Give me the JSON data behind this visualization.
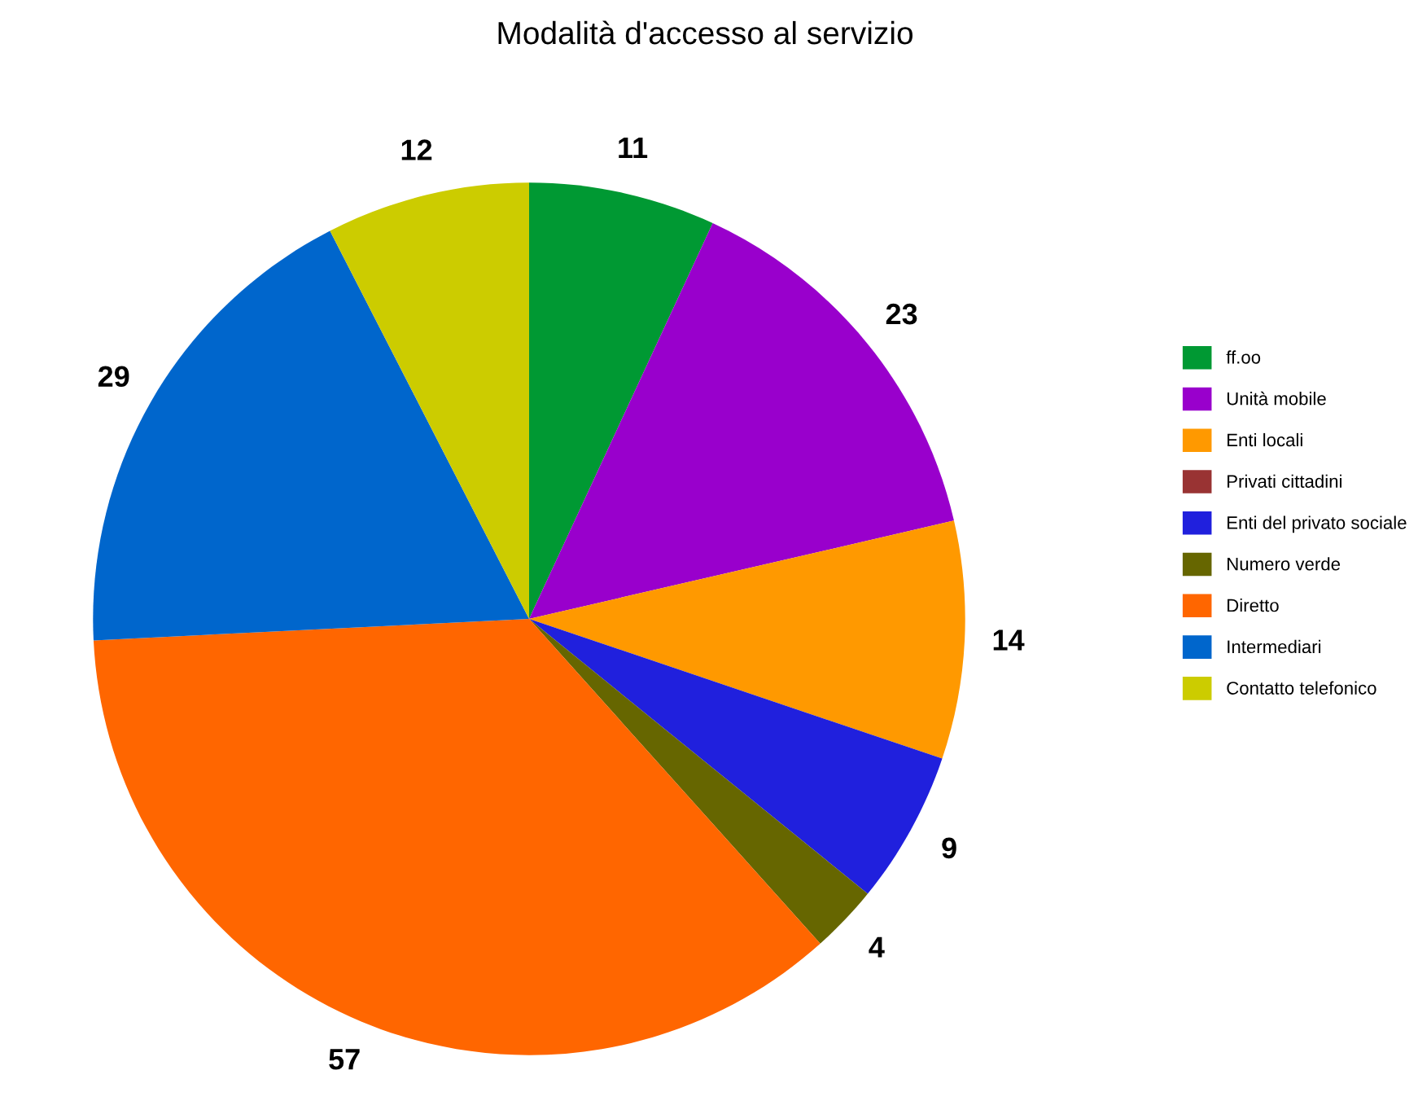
{
  "chart_data": {
    "type": "pie",
    "title": "Modalità d'accesso al servizio",
    "categories": [
      "ff.oo",
      "Unità mobile",
      "Enti locali",
      "Privati cittadini",
      "Enti del privato sociale",
      "Numero verde",
      "Diretto",
      "Intermediari",
      "Contatto telefonico"
    ],
    "values": [
      11,
      23,
      14,
      0,
      9,
      4,
      57,
      29,
      12
    ],
    "value_labels": [
      "11",
      "23",
      "14",
      null,
      "9",
      "4",
      "57",
      "29",
      "12"
    ],
    "colors": [
      "#009933",
      "#9900cc",
      "#ff9900",
      "#993333",
      "#2020dd",
      "#666600",
      "#ff6600",
      "#0066cc",
      "#cccc00"
    ],
    "legend": "right"
  }
}
